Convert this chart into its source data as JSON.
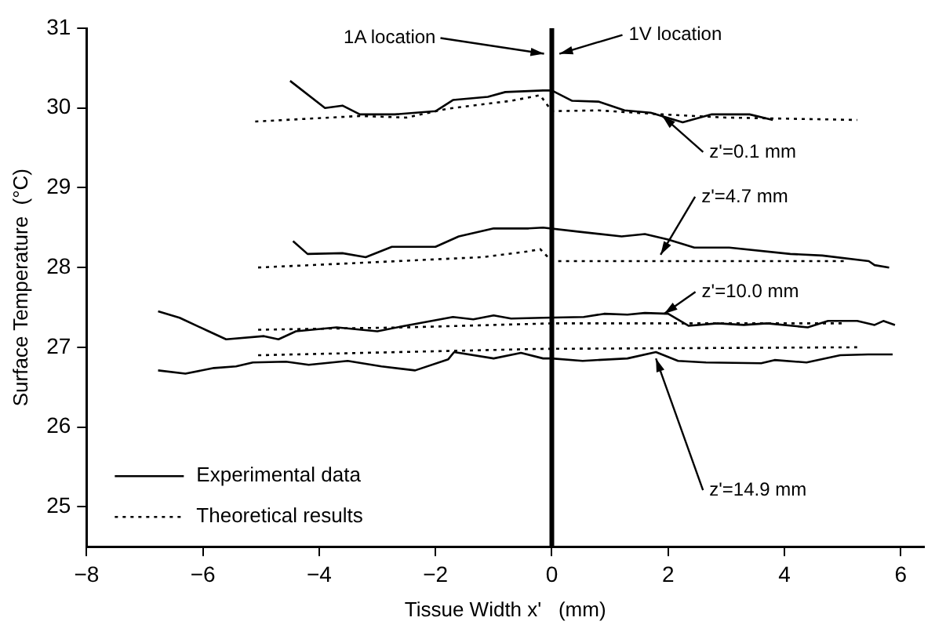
{
  "chart_data": {
    "type": "line",
    "xlabel": "Tissue Width x'   (mm)",
    "ylabel": "Surface Temperature  (°C)",
    "xlim": [
      -8,
      6.4
    ],
    "ylim": [
      24.5,
      31
    ],
    "xticks": [
      -8,
      -6,
      -4,
      -2,
      0,
      2,
      4,
      6
    ],
    "yticks": [
      25,
      26,
      27,
      28,
      29,
      30,
      31
    ],
    "grid": false,
    "legend": "bottom left",
    "marker": "none",
    "series": [
      {
        "name": "Experimental data",
        "color": "#000000",
        "line_style": "solid",
        "x": [
          -4.5,
          -3.9,
          -3.6,
          -3.3,
          -2.7,
          -2.0,
          -1.7,
          -1.1,
          -0.8,
          -0.15,
          0,
          0.35,
          0.8,
          1.25,
          1.7,
          2.25,
          2.75,
          3.4,
          3.8
        ],
        "values": [
          30.34,
          30.0,
          30.03,
          29.92,
          29.92,
          29.96,
          30.1,
          30.14,
          30.2,
          30.22,
          30.22,
          30.09,
          30.08,
          29.97,
          29.94,
          29.82,
          29.92,
          29.92,
          29.85
        ]
      },
      {
        "name": "Theoretical results",
        "color": "#000000",
        "line_style": "dotted",
        "x": [
          -5.1,
          -3.3,
          -2.5,
          -1.8,
          -0.7,
          -0.2,
          0,
          0.8,
          1.9,
          3.0,
          5.25
        ],
        "values": [
          29.83,
          29.9,
          29.88,
          29.99,
          30.09,
          30.16,
          29.96,
          29.97,
          29.92,
          29.88,
          29.85
        ]
      },
      {
        "color": "#000000",
        "line_style": "solid",
        "x": [
          -4.45,
          -4.2,
          -3.6,
          -3.2,
          -2.75,
          -2.0,
          -1.6,
          -1.0,
          -0.4,
          -0.15,
          0.45,
          1.2,
          1.6,
          2.0,
          2.45,
          3.05,
          4.1,
          4.65,
          5.45,
          5.55,
          5.8
        ],
        "values": [
          28.33,
          28.17,
          28.18,
          28.13,
          28.26,
          28.26,
          28.39,
          28.49,
          28.49,
          28.5,
          28.45,
          28.39,
          28.42,
          28.35,
          28.25,
          28.25,
          28.17,
          28.15,
          28.08,
          28.03,
          28.0
        ]
      },
      {
        "color": "#000000",
        "line_style": "dotted",
        "x": [
          -5.05,
          -2.95,
          -1.2,
          -0.43,
          -0.2,
          0,
          1.9,
          4.5,
          5.1
        ],
        "values": [
          28.0,
          28.07,
          28.13,
          28.2,
          28.23,
          28.08,
          28.08,
          28.08,
          28.08
        ]
      },
      {
        "color": "#000000",
        "line_style": "solid",
        "x": [
          -6.77,
          -6.4,
          -5.9,
          -5.6,
          -4.95,
          -4.7,
          -4.4,
          -3.7,
          -3.0,
          -2.45,
          -1.7,
          -1.35,
          -1.0,
          -0.7,
          -0.15,
          0.55,
          0.9,
          1.3,
          1.6,
          2.0,
          2.35,
          2.85,
          3.3,
          3.7,
          4.4,
          4.75,
          5.25,
          5.55,
          5.7,
          5.9
        ],
        "values": [
          27.45,
          27.37,
          27.2,
          27.1,
          27.14,
          27.1,
          27.2,
          27.25,
          27.2,
          27.28,
          27.38,
          27.35,
          27.4,
          27.36,
          27.37,
          27.38,
          27.42,
          27.41,
          27.43,
          27.42,
          27.27,
          27.3,
          27.28,
          27.3,
          27.25,
          27.33,
          27.33,
          27.28,
          27.33,
          27.28
        ]
      },
      {
        "color": "#000000",
        "line_style": "dotted",
        "x": [
          -5.05,
          -2.5,
          0,
          2.5,
          5.05
        ],
        "values": [
          27.22,
          27.25,
          27.3,
          27.3,
          27.3
        ]
      },
      {
        "color": "#000000",
        "line_style": "solid",
        "x": [
          -6.77,
          -6.3,
          -5.81,
          -5.43,
          -5.14,
          -4.57,
          -4.18,
          -3.51,
          -2.93,
          -2.35,
          -1.78,
          -1.68,
          -1.0,
          -0.53,
          -0.15,
          0,
          0.53,
          1.3,
          1.79,
          2.17,
          2.65,
          3.6,
          3.83,
          4.38,
          4.96,
          5.44,
          5.86
        ],
        "values": [
          26.71,
          26.67,
          26.74,
          26.76,
          26.81,
          26.82,
          26.78,
          26.83,
          26.76,
          26.71,
          26.85,
          26.94,
          26.86,
          26.93,
          26.86,
          26.86,
          26.83,
          26.86,
          26.94,
          26.83,
          26.81,
          26.8,
          26.84,
          26.81,
          26.9,
          26.91,
          26.91
        ]
      },
      {
        "color": "#000000",
        "line_style": "dotted",
        "x": [
          -5.05,
          -0.2,
          5.25
        ],
        "values": [
          26.9,
          26.98,
          27.0
        ]
      }
    ],
    "ref_lines": [
      {
        "axis": "x",
        "value": 0,
        "color": "#000000"
      }
    ],
    "annotations": [
      {
        "text": "1A location",
        "x": 0,
        "y": 30.68
      },
      {
        "text": "1V location",
        "x": 0,
        "y": 30.68
      },
      {
        "text": "z'=0.1 mm",
        "x": 1.9,
        "y": 29.9
      },
      {
        "text": "z'=4.7 mm",
        "x": 1.87,
        "y": 28.16
      },
      {
        "text": "z'=10.0 mm",
        "x": 1.93,
        "y": 27.42
      },
      {
        "text": "z'=14.9 mm",
        "x": 1.79,
        "y": 26.86
      }
    ]
  }
}
